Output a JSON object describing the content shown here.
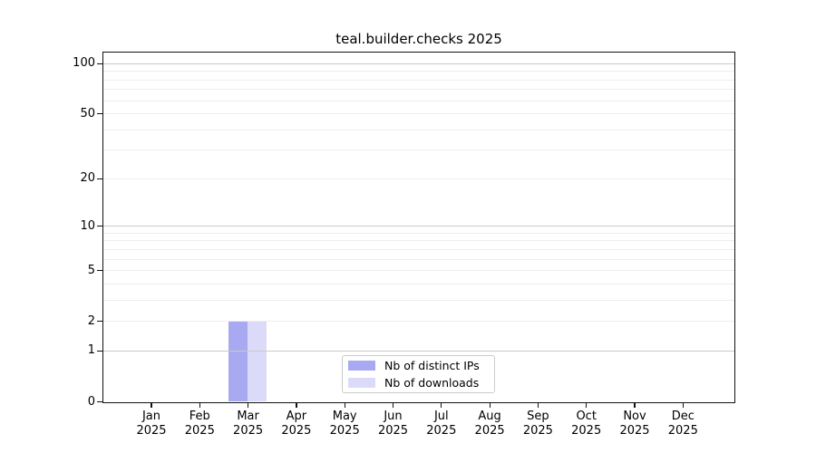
{
  "chart_data": {
    "type": "bar",
    "title": "teal.builder.checks 2025",
    "categories": [
      "Jan 2025",
      "Feb 2025",
      "Mar 2025",
      "Apr 2025",
      "May 2025",
      "Jun 2025",
      "Jul 2025",
      "Aug 2025",
      "Sep 2025",
      "Oct 2025",
      "Nov 2025",
      "Dec 2025"
    ],
    "series": [
      {
        "name": "Nb of distinct IPs",
        "color": "#a9a9f2",
        "values": [
          0,
          0,
          2,
          0,
          0,
          0,
          0,
          0,
          0,
          0,
          0,
          0
        ]
      },
      {
        "name": "Nb of downloads",
        "color": "#dbdbf9",
        "values": [
          0,
          0,
          2,
          0,
          0,
          0,
          0,
          0,
          0,
          0,
          0,
          0
        ]
      }
    ],
    "xlabel": "",
    "ylabel": "",
    "yscale": "log1p",
    "ylim": [
      0,
      116
    ],
    "ytick_values": [
      0,
      1,
      2,
      5,
      10,
      20,
      50,
      100
    ],
    "ytick_labels": [
      "0",
      "1",
      "2",
      "5",
      "10",
      "20",
      "50",
      "100"
    ],
    "grid_major_values": [
      1,
      10,
      100
    ],
    "grid_minor_values": [
      2,
      3,
      4,
      5,
      6,
      7,
      8,
      9,
      20,
      30,
      40,
      50,
      60,
      70,
      80,
      90
    ],
    "legend_position": "lower center"
  },
  "colors": {
    "background": "#ffffff",
    "spine": "#111111",
    "grid_major": "#c9c9c9",
    "grid_minor": "#ededed",
    "bar_distinct_ips": "#a9a9f2",
    "bar_downloads": "#dbdbf9",
    "legend_border": "#cccccc",
    "text": "#000000"
  }
}
